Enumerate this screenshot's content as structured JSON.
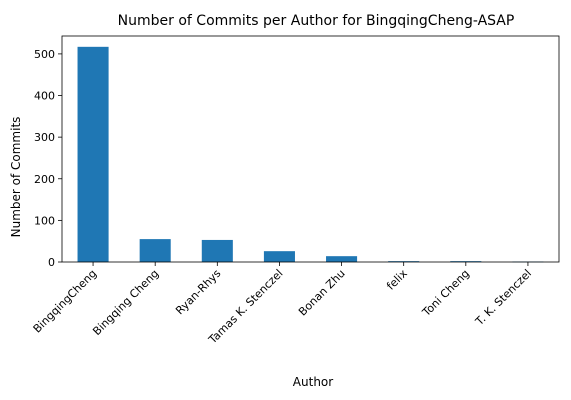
{
  "chart_data": {
    "type": "bar",
    "title": "Number of Commits per Author for BingqingCheng-ASAP",
    "xlabel": "Author",
    "ylabel": "Number of Commits",
    "categories": [
      "BingqingCheng",
      "Bingqing Cheng",
      "Ryan-Rhys",
      "Tamas K. Stenczel",
      "Bonan Zhu",
      "felix",
      "Toni Cheng",
      "T. K. Stenczel"
    ],
    "values": [
      517,
      55,
      53,
      26,
      14,
      2,
      2,
      1
    ],
    "ylim": [
      0,
      543
    ],
    "yticks": [
      0,
      100,
      200,
      300,
      400,
      500
    ],
    "grid": false,
    "bar_color": "#1f77b4"
  }
}
